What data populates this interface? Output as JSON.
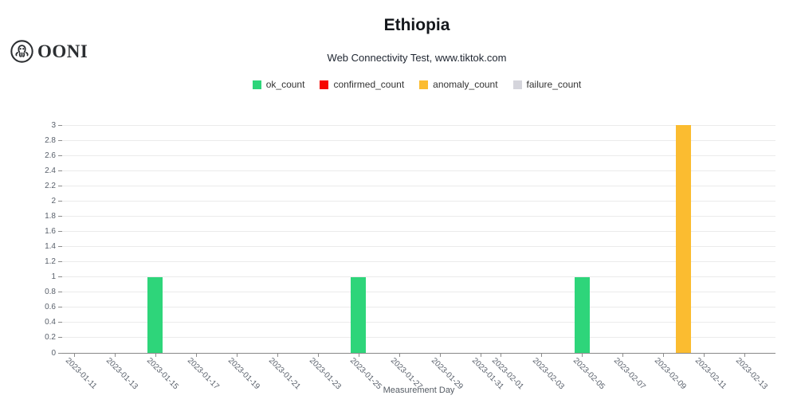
{
  "brand": {
    "name": "OONI",
    "icon": "ooni-octopus-icon"
  },
  "header": {
    "title": "Ethiopia",
    "subtitle": "Web Connectivity Test, www.tiktok.com"
  },
  "legend": {
    "items": [
      {
        "label": "ok_count",
        "color": "#2ed57a"
      },
      {
        "label": "confirmed_count",
        "color": "#f60800"
      },
      {
        "label": "anomaly_count",
        "color": "#fbbc30"
      },
      {
        "label": "failure_count",
        "color": "#d5d5dc"
      }
    ]
  },
  "chart_data": {
    "type": "bar",
    "title": "Ethiopia",
    "subtitle": "Web Connectivity Test, www.tiktok.com",
    "xlabel": "Measurement Day",
    "ylabel": "",
    "ylim": [
      0,
      3
    ],
    "ytick_step": 0.2,
    "grid": true,
    "legend_position": "top-center",
    "x_tick_labels": [
      "2023-01-11",
      "2023-01-13",
      "2023-01-15",
      "2023-01-17",
      "2023-01-19",
      "2023-01-21",
      "2023-01-23",
      "2023-01-25",
      "2023-01-27",
      "2023-01-29",
      "2023-01-31",
      "2023-02-01",
      "2023-02-03",
      "2023-02-05",
      "2023-02-07",
      "2023-02-09",
      "2023-02-11",
      "2023-02-13"
    ],
    "x_axis_start": "2023-01-11",
    "series": [
      {
        "name": "ok_count",
        "color": "#2ed57a",
        "points": [
          {
            "x": "2023-01-15",
            "y": 1
          },
          {
            "x": "2023-01-25",
            "y": 1
          },
          {
            "x": "2023-02-05",
            "y": 1
          }
        ]
      },
      {
        "name": "confirmed_count",
        "color": "#f60800",
        "points": []
      },
      {
        "name": "anomaly_count",
        "color": "#fbbc30",
        "points": [
          {
            "x": "2023-02-10",
            "y": 3
          }
        ]
      },
      {
        "name": "failure_count",
        "color": "#d5d5dc",
        "points": []
      }
    ]
  }
}
